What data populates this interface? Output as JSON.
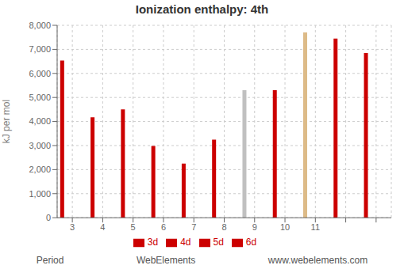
{
  "chart_data": {
    "type": "bar",
    "title": "Ionization enthalpy: 4th",
    "y_label": "kJ per mol",
    "categories": [
      "3",
      "4",
      "5",
      "6",
      "7",
      "8",
      "9",
      "10",
      "11",
      null,
      null
    ],
    "series": [
      {
        "name": "3d",
        "values": [
          6540,
          4175,
          4507,
          2987,
          2252,
          3248,
          5300,
          5300,
          7700,
          7453,
          6851
        ],
        "colors": [
          "#cc0000",
          "#cc0000",
          "#cc0000",
          "#cc0000",
          "#cc0000",
          "#cc0000",
          "silver",
          "#cc0000",
          "#ddbb88",
          "#cc0000",
          "#cc0000"
        ]
      },
      {
        "name": "4d",
        "values": [
          0,
          0,
          0,
          0,
          0,
          0,
          0,
          0,
          0,
          0,
          0
        ],
        "color": "#cc0000"
      },
      {
        "name": "5d",
        "values": [
          0,
          0,
          0,
          0,
          0,
          0,
          0,
          0,
          0,
          0,
          0
        ],
        "color": "#cc0000"
      },
      {
        "name": "6d",
        "values": [
          0,
          0,
          0,
          0,
          0,
          0,
          0,
          0,
          0,
          0,
          0
        ],
        "color": "#cc0000"
      }
    ],
    "ylim": [
      0,
      8000
    ],
    "yticks": [
      0,
      {
        "value": 1000,
        "label": "1,000"
      },
      {
        "value": 2000,
        "label": "2,000"
      },
      {
        "value": 3000,
        "label": "3,000"
      },
      {
        "value": 4000,
        "label": "4,000"
      },
      {
        "value": 5000,
        "label": "5,000"
      },
      {
        "value": 6000,
        "label": "6,000"
      },
      {
        "value": 7000,
        "label": "7,000"
      },
      {
        "value": 8000,
        "label": "8,000"
      }
    ],
    "grid": true,
    "legend": "bottom",
    "annotations": [
      "Period",
      "WebElements",
      "www.webelements.com"
    ]
  }
}
